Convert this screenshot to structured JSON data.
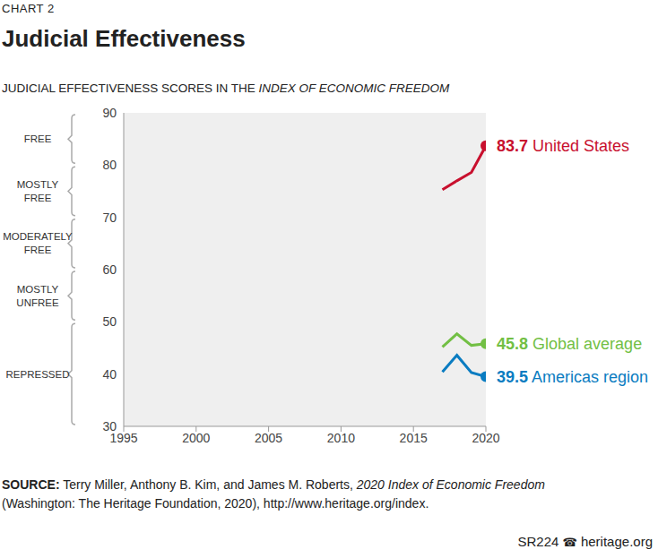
{
  "chart_data": {
    "type": "line",
    "kicker": "CHART 2",
    "title": "Judicial Effectiveness",
    "subtitle": [
      "JUDICIAL EFFECTIVENESS SCORES IN THE",
      "INDEX OF ECONOMIC FREEDOM"
    ],
    "x": [
      2017,
      2018,
      2019,
      2020
    ],
    "series": [
      {
        "name": "United States",
        "color": "#c8102e",
        "values": [
          75.3,
          77.0,
          78.6,
          83.7
        ]
      },
      {
        "name": "Global average",
        "color": "#72bf44",
        "values": [
          45.2,
          47.7,
          45.5,
          45.8
        ]
      },
      {
        "name": "Americas region",
        "color": "#0a7cc1",
        "values": [
          40.4,
          43.6,
          40.3,
          39.5
        ]
      }
    ],
    "xlim": [
      1995,
      2020
    ],
    "xticks": [
      1995,
      2000,
      2005,
      2010,
      2015,
      2020
    ],
    "ylim": [
      30,
      90
    ],
    "yticks": [
      30,
      40,
      50,
      60,
      70,
      80,
      90
    ],
    "grid": false,
    "data_labels": true,
    "marker": "circle",
    "bands": [
      {
        "label": "FREE",
        "from": 80,
        "to": 90
      },
      {
        "label": "MOSTLY FREE",
        "from": 70,
        "to": 80
      },
      {
        "label": "MODERATELY FREE",
        "from": 60,
        "to": 70
      },
      {
        "label": "MOSTLY UNFREE",
        "from": 50,
        "to": 60
      },
      {
        "label": "REPRESSED",
        "from": 30,
        "to": 50
      }
    ],
    "source": {
      "label": "SOURCE:",
      "parts": [
        "Terry Miller, Anthony B. Kim, and James M. Roberts,",
        "2020 Index of Economic Freedom",
        "(Washington: The Heritage Foundation, 2020), http://www.heritage.org/index."
      ]
    },
    "footer": {
      "code": "SR224",
      "icon": "☎",
      "site": "heritage.org"
    }
  }
}
